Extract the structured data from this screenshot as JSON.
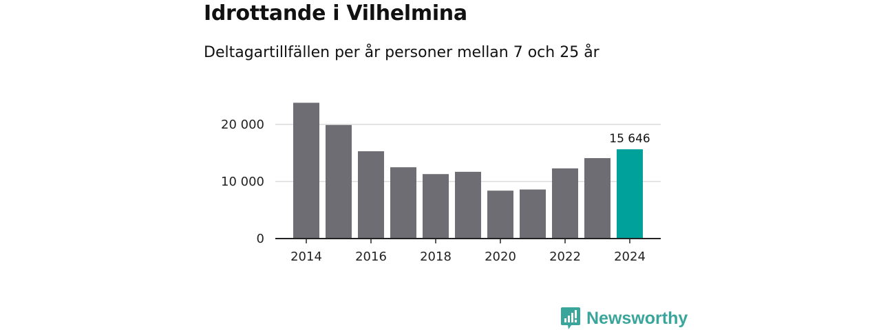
{
  "chart_data": {
    "type": "bar",
    "title": "Idrottande i Vilhelmina",
    "subtitle": "Deltagartillfällen per år personer mellan 7 och 25 år",
    "categories": [
      "2014",
      "2015",
      "2016",
      "2017",
      "2018",
      "2019",
      "2020",
      "2021",
      "2022",
      "2023",
      "2024"
    ],
    "values": [
      23800,
      19900,
      15300,
      12500,
      11300,
      11700,
      8400,
      8600,
      12300,
      14100,
      15646
    ],
    "x_tick_labels": [
      "2014",
      "2016",
      "2018",
      "2020",
      "2022",
      "2024"
    ],
    "y_ticks": [
      {
        "value": 0,
        "label": "0"
      },
      {
        "value": 10000,
        "label": "10 000"
      },
      {
        "value": 20000,
        "label": "20 000"
      }
    ],
    "ylim": [
      0,
      25000
    ],
    "grid": true,
    "highlight_index": 10,
    "highlight_label": "15 646",
    "colors": {
      "bar": "#6e6d73",
      "highlight": "#00a19a",
      "grid": "#dcdcdc",
      "axis": "#222222"
    }
  },
  "brand": {
    "name": "Newsworthy",
    "icon": "newsworthy-logo-icon",
    "color": "#3aa59a"
  }
}
